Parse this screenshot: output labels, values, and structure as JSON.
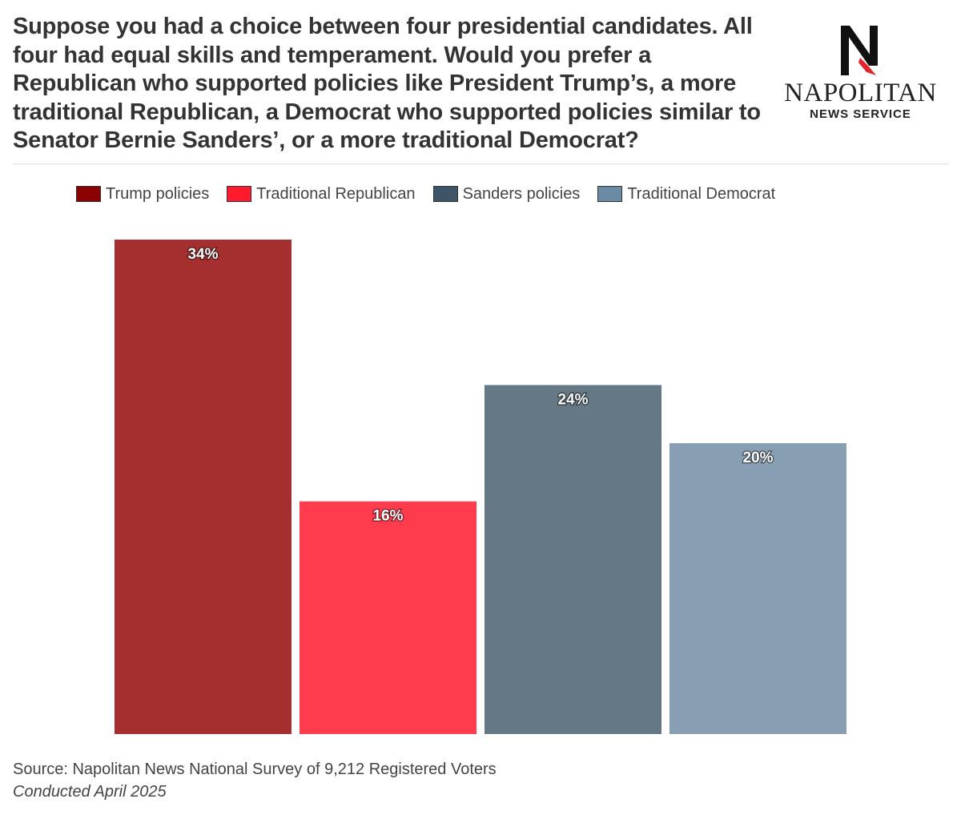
{
  "title": "Suppose you had a choice between four presidential candidates. All four had equal skills and temperament. Would you prefer a Republican who supported policies like President Trump’s, a more traditional Republican, a Democrat who supported policies similar to Senator Bernie Sanders’, or a more traditional Democrat?",
  "logo": {
    "name": "NAPOLITAN",
    "sub": "NEWS SERVICE",
    "mark_color": "#111111",
    "accent_color": "#e3242b"
  },
  "chart_data": {
    "type": "bar",
    "categories": [
      "Trump policies",
      "Traditional Republican",
      "Sanders policies",
      "Traditional Democrat"
    ],
    "values": [
      34,
      16,
      24,
      20
    ],
    "labels": [
      "34%",
      "16%",
      "24%",
      "20%"
    ],
    "colors": [
      "#a52f2f",
      "#ff3b4e",
      "#647985",
      "#889eb2"
    ],
    "legend": {
      "position": "top",
      "items": [
        {
          "label": "Trump policies",
          "color": "#8b0000"
        },
        {
          "label": "Traditional Republican",
          "color": "#ff1a2d"
        },
        {
          "label": "Sanders policies",
          "color": "#3d5566"
        },
        {
          "label": "Traditional Democrat",
          "color": "#6b8aa3"
        }
      ]
    },
    "ylim": [
      0,
      34
    ],
    "grid": false,
    "xlabel": "",
    "ylabel": ""
  },
  "footer": {
    "source": "Source: Napolitan News National Survey of 9,212 Registered Voters",
    "date": "Conducted April 2025"
  }
}
